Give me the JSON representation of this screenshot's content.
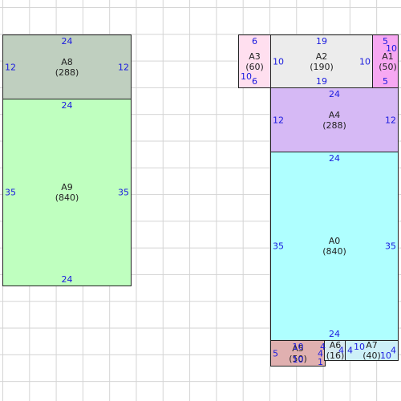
{
  "rects": [
    {
      "id": "A8",
      "area": "(288)",
      "color": "#bfcfbf",
      "top": "24",
      "left": "12",
      "right": "12",
      "bottom": ""
    },
    {
      "id": "A9",
      "area": "(840)",
      "color": "#bfffbf",
      "top": "24",
      "left": "35",
      "right": "35",
      "bottom": "24"
    },
    {
      "id": "A3",
      "area": "(60)",
      "color": "#ffdfef",
      "top": "6",
      "left": "10",
      "right": "",
      "bottom": "6"
    },
    {
      "id": "A2",
      "area": "(190)",
      "color": "#ececec",
      "top": "19",
      "left": "10",
      "right": "10",
      "bottom": "19"
    },
    {
      "id": "A1",
      "area": "(50)",
      "color": "#f7a8f2",
      "top": "5",
      "left": "",
      "right": "10",
      "bottom": "5"
    },
    {
      "id": "A4",
      "area": "(288)",
      "color": "#d6b9f5",
      "top": "24",
      "left": "12",
      "right": "12",
      "bottom": ""
    },
    {
      "id": "A0",
      "area": "(840)",
      "color": "#afffff",
      "top": "24",
      "left": "35",
      "right": "35",
      "bottom": "24"
    },
    {
      "id": "A5",
      "area": "(50)",
      "color": "#e0b0b0",
      "top": "10",
      "left": "5",
      "right": "4",
      "bottom": "10"
    },
    {
      "id": "A6",
      "area": "(16)",
      "color": "#d6eaf0",
      "top": "4",
      "left": "",
      "right": "4",
      "bottom": "1"
    },
    {
      "id": "A7",
      "area": "(40)",
      "color": "#cdf0f8",
      "top": "10",
      "left": "4",
      "right": "4",
      "bottom": "10"
    }
  ]
}
